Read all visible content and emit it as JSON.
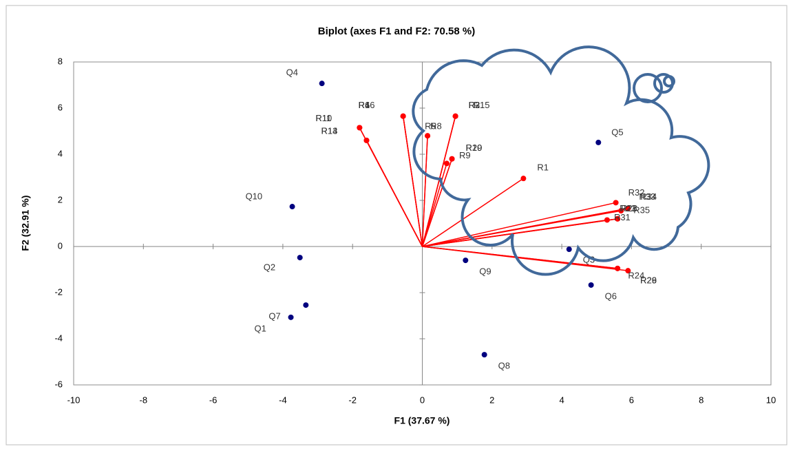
{
  "chart_data": {
    "type": "biplot",
    "title": "Biplot (axes F1 and F2: 70.58 %)",
    "x_label": "F1 (37.67 %)",
    "y_label": "F2 (32.91 %)",
    "xlim": [
      -10,
      10
    ],
    "ylim": [
      -6,
      8
    ],
    "xticks": [
      -10,
      -8,
      -6,
      -4,
      -2,
      0,
      2,
      4,
      6,
      8,
      10
    ],
    "yticks": [
      -6,
      -4,
      -2,
      0,
      2,
      4,
      6,
      8
    ],
    "observations": {
      "color": "#00007f",
      "names": [
        "Q1",
        "Q2",
        "Q3",
        "Q4",
        "Q5",
        "Q6",
        "Q7",
        "Q8",
        "Q9",
        "Q10"
      ],
      "x": [
        -3.77,
        -3.51,
        4.21,
        -2.88,
        5.05,
        4.84,
        -3.34,
        1.78,
        1.24,
        -3.73
      ],
      "y": [
        -3.07,
        -0.48,
        -0.12,
        7.07,
        4.51,
        -1.67,
        -2.54,
        -4.69,
        -0.6,
        1.73
      ]
    },
    "variables": {
      "color": "#ff0000",
      "names": [
        "R10",
        "R11",
        "R13",
        "R14",
        "R16",
        "R4",
        "R6",
        "R2",
        "R3",
        "R15",
        "R5",
        "R8",
        "R19",
        "R20",
        "R9",
        "R1",
        "R32",
        "R33",
        "R34",
        "R35",
        "R23",
        "R28",
        "R31",
        "R24",
        "R26",
        "R29"
      ],
      "x": [
        -1.8,
        -1.8,
        -1.6,
        -1.6,
        -0.55,
        -0.55,
        -0.55,
        0.95,
        0.95,
        0.95,
        0.15,
        0.15,
        0.85,
        0.85,
        0.7,
        2.9,
        5.55,
        5.9,
        5.9,
        5.7,
        5.6,
        5.6,
        5.3,
        5.9,
        5.6,
        5.6
      ],
      "y": [
        5.15,
        5.15,
        4.6,
        4.6,
        5.65,
        5.65,
        5.65,
        5.65,
        5.65,
        5.65,
        4.8,
        4.8,
        3.8,
        3.8,
        3.6,
        2.95,
        1.9,
        1.65,
        1.65,
        1.55,
        1.2,
        1.2,
        1.15,
        -1.05,
        -0.95,
        -0.95
      ]
    }
  }
}
